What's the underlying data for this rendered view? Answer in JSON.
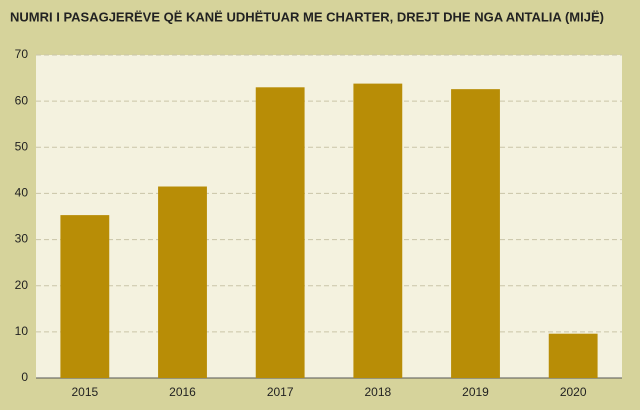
{
  "chart_data": {
    "type": "bar",
    "title": "NUMRI I PASAGJERËVE QË KANË UDHËTUAR ME CHARTER, DREJT DHE NGA ANTALIA (MIJË)",
    "categories": [
      "2015",
      "2016",
      "2017",
      "2018",
      "2019",
      "2020"
    ],
    "values": [
      35.3,
      41.5,
      63,
      63.8,
      62.6,
      9.6
    ],
    "color": "#b88d06",
    "ylim": [
      0,
      70
    ],
    "yticks": [
      0,
      10,
      20,
      30,
      40,
      50,
      60,
      70
    ],
    "grid": true
  }
}
